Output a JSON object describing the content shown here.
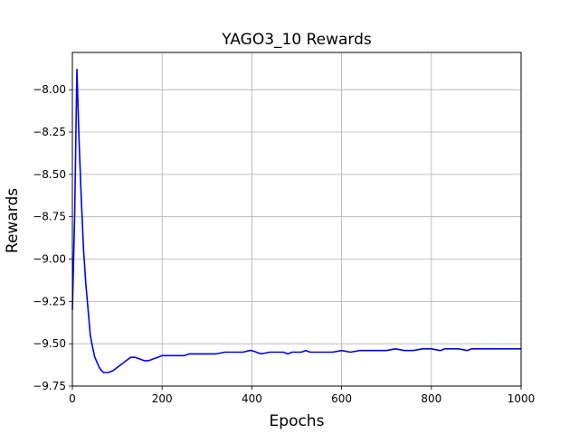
{
  "chart_data": {
    "type": "line",
    "title": "YAGO3_10 Rewards",
    "xlabel": "Epochs",
    "ylabel": "Rewards",
    "xlim": [
      0,
      1000
    ],
    "ylim": [
      -9.75,
      -7.78
    ],
    "xticks": [
      0,
      200,
      400,
      600,
      800,
      1000
    ],
    "yticks": [
      -8.0,
      -8.25,
      -8.5,
      -8.75,
      -9.0,
      -9.25,
      -9.5,
      -9.75
    ],
    "xtick_labels": [
      "0",
      "200",
      "400",
      "600",
      "800",
      "1000"
    ],
    "ytick_labels": [
      "−8.00",
      "−8.25",
      "−8.50",
      "−8.75",
      "−9.00",
      "−9.25",
      "−9.50",
      "−9.75"
    ],
    "grid": true,
    "series": [
      {
        "color": "#0000ff",
        "x": [
          0,
          5,
          10,
          15,
          20,
          25,
          30,
          35,
          40,
          45,
          50,
          55,
          60,
          65,
          70,
          80,
          90,
          100,
          110,
          120,
          130,
          140,
          150,
          160,
          170,
          180,
          190,
          200,
          210,
          220,
          230,
          240,
          250,
          260,
          270,
          280,
          290,
          300,
          320,
          340,
          360,
          380,
          395,
          400,
          410,
          420,
          440,
          460,
          470,
          480,
          490,
          500,
          510,
          520,
          530,
          540,
          560,
          580,
          600,
          620,
          640,
          650,
          660,
          670,
          680,
          700,
          720,
          740,
          760,
          780,
          790,
          800,
          820,
          830,
          840,
          860,
          880,
          890,
          900,
          910,
          920,
          940,
          960,
          980,
          1000
        ],
        "y": [
          -9.3,
          -8.75,
          -7.88,
          -8.3,
          -8.65,
          -8.95,
          -9.15,
          -9.3,
          -9.45,
          -9.52,
          -9.58,
          -9.61,
          -9.64,
          -9.66,
          -9.67,
          -9.67,
          -9.66,
          -9.64,
          -9.62,
          -9.6,
          -9.58,
          -9.58,
          -9.59,
          -9.6,
          -9.6,
          -9.59,
          -9.58,
          -9.57,
          -9.57,
          -9.57,
          -9.57,
          -9.57,
          -9.57,
          -9.56,
          -9.56,
          -9.56,
          -9.56,
          -9.56,
          -9.56,
          -9.55,
          -9.55,
          -9.55,
          -9.54,
          -9.54,
          -9.55,
          -9.56,
          -9.55,
          -9.55,
          -9.55,
          -9.56,
          -9.55,
          -9.55,
          -9.55,
          -9.54,
          -9.55,
          -9.55,
          -9.55,
          -9.55,
          -9.54,
          -9.55,
          -9.54,
          -9.54,
          -9.54,
          -9.54,
          -9.54,
          -9.54,
          -9.53,
          -9.54,
          -9.54,
          -9.53,
          -9.53,
          -9.53,
          -9.54,
          -9.53,
          -9.53,
          -9.53,
          -9.54,
          -9.53,
          -9.53,
          -9.53,
          -9.53,
          -9.53,
          -9.53,
          -9.53,
          -9.53
        ]
      }
    ]
  }
}
